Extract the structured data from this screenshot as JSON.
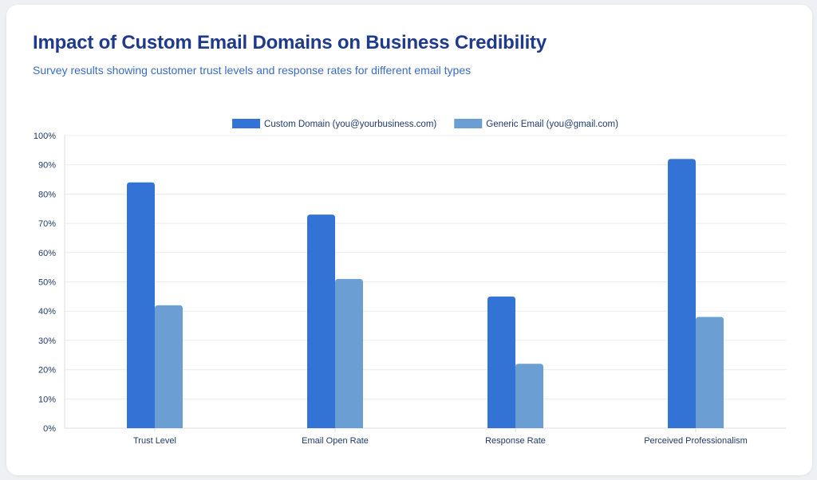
{
  "title": "Impact of Custom Email Domains on Business Credibility",
  "subtitle": "Survey results showing customer trust levels and response rates for different email types",
  "colors": {
    "custom": "#3373d6",
    "generic": "#6b9ed3",
    "title": "#1f3a8a",
    "subtitle": "#3a6bc4",
    "axis_text": "#1f3a6e",
    "grid": "#ececec"
  },
  "chart_data": {
    "type": "bar",
    "categories": [
      "Trust Level",
      "Email Open Rate",
      "Response Rate",
      "Perceived Professionalism"
    ],
    "series": [
      {
        "name": "Custom Domain (you@yourbusiness.com)",
        "values": [
          84,
          73,
          45,
          92
        ]
      },
      {
        "name": "Generic Email (you@gmail.com)",
        "values": [
          42,
          51,
          22,
          38
        ]
      }
    ],
    "y_ticks": [
      "0%",
      "10%",
      "20%",
      "30%",
      "40%",
      "50%",
      "60%",
      "70%",
      "80%",
      "90%",
      "100%"
    ],
    "ylim": [
      0,
      100
    ],
    "y_unit": "%",
    "grid": true,
    "legend_position": "top-center"
  }
}
